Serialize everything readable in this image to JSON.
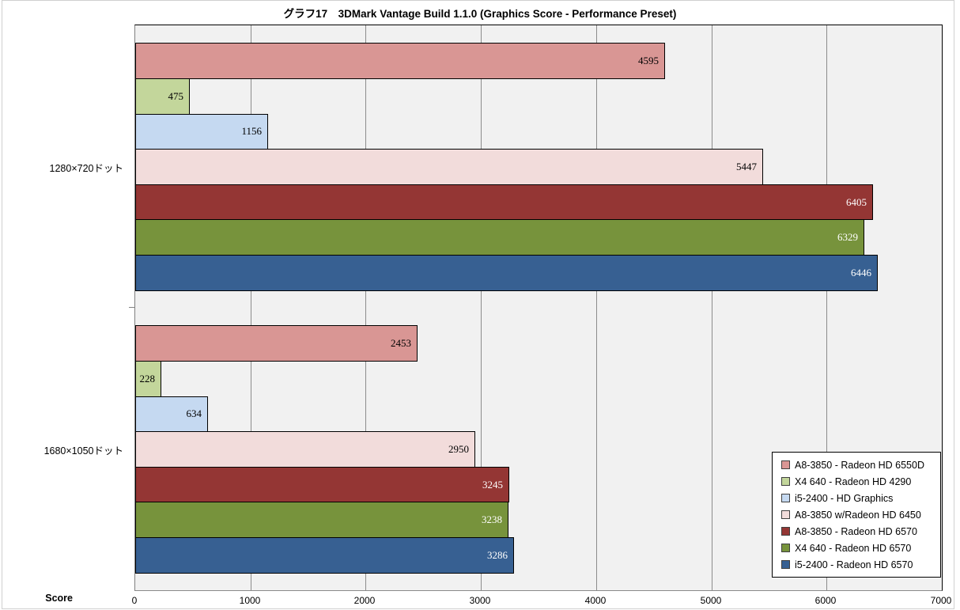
{
  "title": "グラフ17　3DMark Vantage Build 1.1.0 (Graphics Score - Performance Preset)",
  "axis": {
    "score_label": "Score"
  },
  "chart_data": {
    "type": "bar",
    "orientation": "horizontal",
    "title": "グラフ17　3DMark Vantage Build 1.1.0 (Graphics Score - Performance Preset)",
    "categories": [
      "1280×720ドット",
      "1680×1050ドット"
    ],
    "series": [
      {
        "name": "A8-3850 - Radeon HD 6550D",
        "color": "#D99694",
        "label_color": "#000000",
        "values": [
          4595,
          2453
        ]
      },
      {
        "name": "X4 640 - Radeon HD 4290",
        "color": "#C3D69B",
        "label_color": "#000000",
        "values": [
          475,
          228
        ]
      },
      {
        "name": "i5-2400 - HD Graphics",
        "color": "#C5D9F1",
        "label_color": "#000000",
        "values": [
          1156,
          634
        ]
      },
      {
        "name": "A8-3850 w/Radeon HD 6450",
        "color": "#F2DCDB",
        "label_color": "#000000",
        "values": [
          5447,
          2950
        ]
      },
      {
        "name": "A8-3850 - Radeon HD 6570",
        "color": "#943634",
        "label_color": "#FFFFFF",
        "values": [
          6405,
          3245
        ]
      },
      {
        "name": "X4 640 - Radeon HD 6570",
        "color": "#77933C",
        "label_color": "#FFFFFF",
        "values": [
          6329,
          3238
        ]
      },
      {
        "name": "i5-2400 - Radeon HD 6570",
        "color": "#376092",
        "label_color": "#FFFFFF",
        "values": [
          6446,
          3286
        ]
      }
    ],
    "xlabel": "Score",
    "xlim": [
      0,
      7000
    ],
    "x_ticks": [
      0,
      1000,
      2000,
      3000,
      4000,
      5000,
      6000,
      7000
    ],
    "grid": true,
    "plot_background": "#F1F1F1",
    "gridline_color": "#8C8C8C",
    "legend_position": "inside-bottom-right"
  }
}
